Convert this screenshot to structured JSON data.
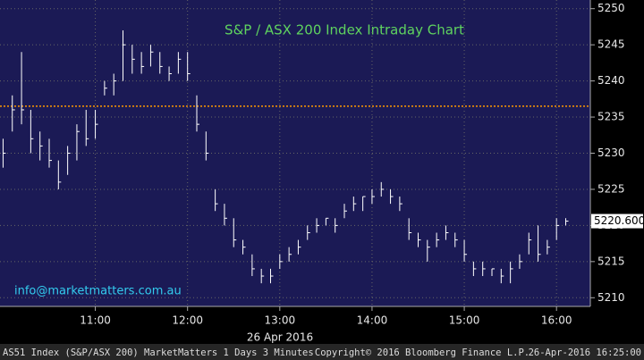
{
  "chart_data": {
    "type": "ohlc",
    "title": "S&P / ASX 200 Index Intraday Chart",
    "annotation": "info@marketmatters.com.au",
    "xlabel": "26 Apr 2016",
    "x": [
      600,
      606,
      612,
      618,
      624,
      630,
      636,
      642,
      648,
      654,
      660,
      666,
      672,
      678,
      684,
      690,
      696,
      702,
      708,
      714,
      720,
      726,
      732,
      738,
      744,
      750,
      756,
      762,
      768,
      774,
      780,
      786,
      792,
      798,
      804,
      810,
      816,
      822,
      828,
      834,
      840,
      846,
      852,
      858,
      864,
      870,
      876,
      882,
      888,
      894,
      900,
      906,
      912,
      918,
      924,
      930,
      936,
      942,
      948,
      954,
      960,
      966
    ],
    "high": [
      5232,
      5238,
      5244,
      5236,
      5233,
      5232,
      5229,
      5231,
      5234,
      5236,
      5236,
      5240,
      5241,
      5247,
      5245,
      5244,
      5245,
      5244,
      5242,
      5244,
      5244,
      5238,
      5233,
      5225,
      5223,
      5221,
      5218,
      5216,
      5214,
      5214,
      5216,
      5217,
      5218,
      5220,
      5221,
      5221,
      5221,
      5223,
      5224,
      5224,
      5225,
      5226,
      5225,
      5224,
      5221,
      5219,
      5218,
      5219,
      5220,
      5219,
      5218,
      5215,
      5215,
      5214,
      5214,
      5215,
      5216,
      5219,
      5220,
      5218,
      5221,
      5221
    ],
    "low": [
      5228,
      5233,
      5234,
      5230,
      5229,
      5228,
      5225,
      5227,
      5229,
      5231,
      5232,
      5238,
      5238,
      5240,
      5241,
      5241,
      5242,
      5241,
      5240,
      5241,
      5240,
      5233,
      5229,
      5222,
      5220,
      5217,
      5216,
      5213,
      5212,
      5212,
      5214,
      5215,
      5216,
      5218,
      5219,
      5220,
      5219,
      5221,
      5222,
      5222,
      5223,
      5224,
      5223,
      5222,
      5218,
      5217,
      5215,
      5217,
      5218,
      5217,
      5215,
      5213,
      5213,
      5213,
      5212,
      5212,
      5214,
      5216,
      5215,
      5216,
      5218,
      5220
    ],
    "close": [
      5230,
      5236,
      5236,
      5232,
      5231,
      5229,
      5226,
      5230,
      5233,
      5232,
      5234,
      5239,
      5240,
      5245,
      5243,
      5242,
      5244,
      5242,
      5241,
      5243,
      5241,
      5234,
      5230,
      5223,
      5221,
      5218,
      5217,
      5214,
      5213,
      5213,
      5215,
      5216,
      5217,
      5219,
      5220,
      5221,
      5220,
      5222,
      5223,
      5224,
      5224,
      5225,
      5224,
      5223,
      5219,
      5218,
      5217,
      5218,
      5219,
      5218,
      5216,
      5214,
      5214,
      5214,
      5213,
      5214,
      5215,
      5218,
      5216,
      5217,
      5220,
      5220.6
    ],
    "last_label": "5220.600",
    "reference_line": 5236.5,
    "color": "#ffffff",
    "reference_color": "#ff9900",
    "xlim": [
      598,
      982
    ],
    "ylim": [
      5208.8,
      5251.2
    ],
    "xticks": [
      {
        "value": 660,
        "label": "11:00"
      },
      {
        "value": 720,
        "label": "12:00"
      },
      {
        "value": 780,
        "label": "13:00"
      },
      {
        "value": 840,
        "label": "14:00"
      },
      {
        "value": 900,
        "label": "15:00"
      },
      {
        "value": 960,
        "label": "16:00"
      }
    ],
    "yticks": [
      5210,
      5215,
      5220,
      5225,
      5230,
      5235,
      5240,
      5245,
      5250
    ],
    "grid": true
  },
  "footer": {
    "left": "AS51 Index (S&P/ASX 200) MarketMatters 1 Days 3 Minutes",
    "center": "Copyright© 2016 Bloomberg Finance L.P.",
    "right": "26-Apr-2016 16:25:00"
  }
}
